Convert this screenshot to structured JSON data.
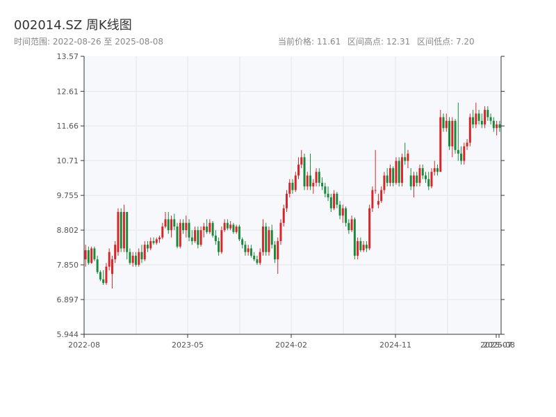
{
  "header": {
    "title": "002014.SZ 周K线图",
    "range_text": "时间范围: 2022-08-26 至 2025-08-08",
    "current_price_text": "当前价格: 11.61",
    "high_text": "区间高点: 12.31",
    "low_text": "区间低点: 7.20"
  },
  "chart_data": {
    "type": "candlestick",
    "title": "002014.SZ 周K线图",
    "xlabel": "",
    "ylabel": "",
    "date_range": [
      "2022-08-26",
      "2025-08-08"
    ],
    "current_price": 11.61,
    "period_high": 12.31,
    "period_low": 7.2,
    "ylim": [
      5.944,
      13.57
    ],
    "y_ticks": [
      "5.944",
      "6.897",
      "7.850",
      "8.802",
      "9.755",
      "10.71",
      "11.66",
      "12.61",
      "13.57"
    ],
    "x_ticks": [
      "2022-08",
      "2023-05",
      "2024-02",
      "2024-11",
      "2025-07",
      "2025-08"
    ],
    "up_color": "#d62728",
    "down_color": "#1a8a3a",
    "grid": true,
    "legend": "none",
    "series": [
      {
        "o": 8.0,
        "h": 8.4,
        "l": 7.8,
        "c": 8.25
      },
      {
        "o": 8.25,
        "h": 8.35,
        "l": 7.85,
        "c": 7.9
      },
      {
        "o": 7.9,
        "h": 8.35,
        "l": 7.88,
        "c": 8.3
      },
      {
        "o": 8.3,
        "h": 8.35,
        "l": 7.95,
        "c": 8.0
      },
      {
        "o": 8.0,
        "h": 8.1,
        "l": 7.6,
        "c": 7.65
      },
      {
        "o": 7.65,
        "h": 7.7,
        "l": 7.4,
        "c": 7.45
      },
      {
        "o": 7.45,
        "h": 7.7,
        "l": 7.3,
        "c": 7.35
      },
      {
        "o": 7.35,
        "h": 7.9,
        "l": 7.3,
        "c": 7.8
      },
      {
        "o": 7.8,
        "h": 8.3,
        "l": 7.7,
        "c": 8.2
      },
      {
        "o": 7.6,
        "h": 8.1,
        "l": 7.2,
        "c": 8.0
      },
      {
        "o": 8.0,
        "h": 8.5,
        "l": 7.9,
        "c": 8.4
      },
      {
        "o": 8.2,
        "h": 9.4,
        "l": 8.1,
        "c": 9.3
      },
      {
        "o": 9.3,
        "h": 9.4,
        "l": 8.2,
        "c": 8.3
      },
      {
        "o": 8.3,
        "h": 9.5,
        "l": 8.2,
        "c": 9.3
      },
      {
        "o": 9.3,
        "h": 9.3,
        "l": 8.0,
        "c": 8.2
      },
      {
        "o": 8.2,
        "h": 8.3,
        "l": 7.85,
        "c": 7.9
      },
      {
        "o": 7.9,
        "h": 8.2,
        "l": 7.8,
        "c": 8.1
      },
      {
        "o": 8.1,
        "h": 8.2,
        "l": 7.8,
        "c": 7.85
      },
      {
        "o": 7.85,
        "h": 8.3,
        "l": 7.8,
        "c": 8.2
      },
      {
        "o": 8.2,
        "h": 8.4,
        "l": 7.9,
        "c": 8.0
      },
      {
        "o": 8.0,
        "h": 8.5,
        "l": 7.95,
        "c": 8.4
      },
      {
        "o": 8.4,
        "h": 8.5,
        "l": 8.2,
        "c": 8.3
      },
      {
        "o": 8.3,
        "h": 8.6,
        "l": 8.25,
        "c": 8.5
      },
      {
        "o": 8.5,
        "h": 8.6,
        "l": 8.4,
        "c": 8.45
      },
      {
        "o": 8.45,
        "h": 8.6,
        "l": 8.4,
        "c": 8.55
      },
      {
        "o": 8.55,
        "h": 8.65,
        "l": 8.45,
        "c": 8.6
      },
      {
        "o": 8.6,
        "h": 9.0,
        "l": 8.55,
        "c": 8.9
      },
      {
        "o": 8.9,
        "h": 9.3,
        "l": 8.85,
        "c": 9.1
      },
      {
        "o": 9.1,
        "h": 9.3,
        "l": 8.7,
        "c": 8.8
      },
      {
        "o": 8.8,
        "h": 9.2,
        "l": 8.6,
        "c": 9.1
      },
      {
        "o": 9.1,
        "h": 9.25,
        "l": 8.8,
        "c": 8.9
      },
      {
        "o": 8.9,
        "h": 9.0,
        "l": 8.3,
        "c": 8.35
      },
      {
        "o": 8.35,
        "h": 9.1,
        "l": 8.3,
        "c": 9.0
      },
      {
        "o": 9.0,
        "h": 9.1,
        "l": 8.7,
        "c": 8.8
      },
      {
        "o": 8.8,
        "h": 9.2,
        "l": 8.6,
        "c": 9.0
      },
      {
        "o": 9.0,
        "h": 9.1,
        "l": 8.5,
        "c": 8.6
      },
      {
        "o": 8.6,
        "h": 8.8,
        "l": 8.4,
        "c": 8.5
      },
      {
        "o": 8.5,
        "h": 8.9,
        "l": 8.45,
        "c": 8.8
      },
      {
        "o": 8.8,
        "h": 8.9,
        "l": 8.3,
        "c": 8.4
      },
      {
        "o": 8.4,
        "h": 8.9,
        "l": 8.35,
        "c": 8.8
      },
      {
        "o": 8.8,
        "h": 9.0,
        "l": 8.6,
        "c": 8.9
      },
      {
        "o": 8.9,
        "h": 9.1,
        "l": 8.7,
        "c": 8.75
      },
      {
        "o": 8.75,
        "h": 9.1,
        "l": 8.7,
        "c": 9.0
      },
      {
        "o": 9.0,
        "h": 9.05,
        "l": 8.6,
        "c": 8.65
      },
      {
        "o": 8.65,
        "h": 8.8,
        "l": 8.4,
        "c": 8.5
      },
      {
        "o": 8.5,
        "h": 8.6,
        "l": 8.1,
        "c": 8.2
      },
      {
        "o": 8.2,
        "h": 8.9,
        "l": 8.15,
        "c": 8.8
      },
      {
        "o": 8.8,
        "h": 9.1,
        "l": 8.75,
        "c": 9.0
      },
      {
        "o": 9.0,
        "h": 9.1,
        "l": 8.8,
        "c": 8.85
      },
      {
        "o": 8.85,
        "h": 9.05,
        "l": 8.8,
        "c": 8.95
      },
      {
        "o": 8.95,
        "h": 9.0,
        "l": 8.7,
        "c": 8.75
      },
      {
        "o": 8.75,
        "h": 8.95,
        "l": 8.7,
        "c": 8.9
      },
      {
        "o": 8.9,
        "h": 8.95,
        "l": 8.5,
        "c": 8.55
      },
      {
        "o": 8.55,
        "h": 8.6,
        "l": 8.3,
        "c": 8.4
      },
      {
        "o": 8.4,
        "h": 8.5,
        "l": 8.1,
        "c": 8.2
      },
      {
        "o": 8.2,
        "h": 8.4,
        "l": 8.1,
        "c": 8.3
      },
      {
        "o": 8.3,
        "h": 8.4,
        "l": 8.05,
        "c": 8.1
      },
      {
        "o": 8.1,
        "h": 8.2,
        "l": 7.95,
        "c": 8.0
      },
      {
        "o": 8.0,
        "h": 8.1,
        "l": 7.85,
        "c": 7.9
      },
      {
        "o": 7.9,
        "h": 8.3,
        "l": 7.85,
        "c": 8.2
      },
      {
        "o": 8.2,
        "h": 9.1,
        "l": 8.1,
        "c": 8.9
      },
      {
        "o": 8.9,
        "h": 9.0,
        "l": 8.1,
        "c": 8.2
      },
      {
        "o": 8.2,
        "h": 8.9,
        "l": 8.1,
        "c": 8.8
      },
      {
        "o": 8.8,
        "h": 8.95,
        "l": 8.3,
        "c": 8.4
      },
      {
        "o": 8.4,
        "h": 8.5,
        "l": 7.9,
        "c": 8.0
      },
      {
        "o": 8.0,
        "h": 8.6,
        "l": 7.6,
        "c": 8.5
      },
      {
        "o": 8.5,
        "h": 9.1,
        "l": 8.4,
        "c": 9.0
      },
      {
        "o": 9.0,
        "h": 9.5,
        "l": 8.9,
        "c": 9.4
      },
      {
        "o": 9.4,
        "h": 9.9,
        "l": 9.3,
        "c": 9.8
      },
      {
        "o": 9.8,
        "h": 10.2,
        "l": 9.7,
        "c": 10.1
      },
      {
        "o": 10.1,
        "h": 10.2,
        "l": 9.8,
        "c": 9.9
      },
      {
        "o": 9.9,
        "h": 10.4,
        "l": 9.85,
        "c": 10.3
      },
      {
        "o": 10.3,
        "h": 10.8,
        "l": 10.2,
        "c": 10.6
      },
      {
        "o": 10.6,
        "h": 11.0,
        "l": 10.5,
        "c": 10.8
      },
      {
        "o": 10.8,
        "h": 10.9,
        "l": 9.9,
        "c": 10.0
      },
      {
        "o": 10.0,
        "h": 10.4,
        "l": 9.9,
        "c": 10.3
      },
      {
        "o": 10.3,
        "h": 10.9,
        "l": 9.9,
        "c": 10.0
      },
      {
        "o": 10.0,
        "h": 10.2,
        "l": 9.8,
        "c": 10.1
      },
      {
        "o": 10.1,
        "h": 10.5,
        "l": 10.0,
        "c": 10.4
      },
      {
        "o": 10.4,
        "h": 10.5,
        "l": 10.0,
        "c": 10.1
      },
      {
        "o": 10.1,
        "h": 10.25,
        "l": 9.9,
        "c": 10.0
      },
      {
        "o": 10.0,
        "h": 10.1,
        "l": 9.7,
        "c": 9.8
      },
      {
        "o": 9.8,
        "h": 10.0,
        "l": 9.6,
        "c": 9.7
      },
      {
        "o": 9.7,
        "h": 9.8,
        "l": 9.3,
        "c": 9.4
      },
      {
        "o": 9.4,
        "h": 9.9,
        "l": 9.35,
        "c": 9.8
      },
      {
        "o": 9.8,
        "h": 9.85,
        "l": 9.4,
        "c": 9.5
      },
      {
        "o": 9.5,
        "h": 9.6,
        "l": 9.1,
        "c": 9.2
      },
      {
        "o": 9.2,
        "h": 9.5,
        "l": 9.0,
        "c": 9.4
      },
      {
        "o": 9.4,
        "h": 9.45,
        "l": 8.9,
        "c": 9.0
      },
      {
        "o": 9.0,
        "h": 9.1,
        "l": 8.7,
        "c": 8.8
      },
      {
        "o": 8.8,
        "h": 9.2,
        "l": 8.75,
        "c": 9.1
      },
      {
        "o": 9.1,
        "h": 9.15,
        "l": 8.0,
        "c": 8.1
      },
      {
        "o": 8.1,
        "h": 8.6,
        "l": 8.0,
        "c": 8.5
      },
      {
        "o": 8.5,
        "h": 8.6,
        "l": 8.2,
        "c": 8.25
      },
      {
        "o": 8.25,
        "h": 8.5,
        "l": 8.2,
        "c": 8.4
      },
      {
        "o": 8.4,
        "h": 8.5,
        "l": 8.2,
        "c": 8.3
      },
      {
        "o": 8.3,
        "h": 9.5,
        "l": 8.25,
        "c": 9.4
      },
      {
        "o": 9.4,
        "h": 10.0,
        "l": 9.3,
        "c": 9.9
      },
      {
        "o": 9.9,
        "h": 11.0,
        "l": 9.8,
        "c": 9.9
      },
      {
        "o": 9.5,
        "h": 9.8,
        "l": 9.4,
        "c": 9.6
      },
      {
        "o": 9.6,
        "h": 10.0,
        "l": 9.55,
        "c": 9.9
      },
      {
        "o": 9.9,
        "h": 10.4,
        "l": 9.8,
        "c": 10.3
      },
      {
        "o": 10.3,
        "h": 10.5,
        "l": 10.0,
        "c": 10.1
      },
      {
        "o": 10.1,
        "h": 10.6,
        "l": 10.0,
        "c": 10.5
      },
      {
        "o": 10.5,
        "h": 10.55,
        "l": 10.0,
        "c": 10.1
      },
      {
        "o": 10.1,
        "h": 10.8,
        "l": 10.05,
        "c": 10.7
      },
      {
        "o": 10.7,
        "h": 10.8,
        "l": 10.0,
        "c": 10.1
      },
      {
        "o": 10.1,
        "h": 10.9,
        "l": 10.0,
        "c": 10.8
      },
      {
        "o": 10.8,
        "h": 11.2,
        "l": 10.6,
        "c": 10.7
      },
      {
        "o": 10.7,
        "h": 11.0,
        "l": 10.5,
        "c": 10.9
      },
      {
        "o": 10.3,
        "h": 10.5,
        "l": 9.9,
        "c": 10.0
      },
      {
        "o": 10.0,
        "h": 10.4,
        "l": 9.7,
        "c": 10.3
      },
      {
        "o": 10.3,
        "h": 10.4,
        "l": 10.0,
        "c": 10.1
      },
      {
        "o": 10.1,
        "h": 10.6,
        "l": 10.0,
        "c": 10.5
      },
      {
        "o": 10.5,
        "h": 10.6,
        "l": 10.2,
        "c": 10.3
      },
      {
        "o": 10.3,
        "h": 10.4,
        "l": 10.1,
        "c": 10.2
      },
      {
        "o": 10.2,
        "h": 10.4,
        "l": 9.9,
        "c": 10.0
      },
      {
        "o": 10.0,
        "h": 10.5,
        "l": 9.95,
        "c": 10.4
      },
      {
        "o": 10.4,
        "h": 10.7,
        "l": 10.3,
        "c": 10.5
      },
      {
        "o": 10.5,
        "h": 10.6,
        "l": 10.3,
        "c": 10.4
      },
      {
        "o": 10.4,
        "h": 12.1,
        "l": 10.4,
        "c": 11.9
      },
      {
        "o": 11.9,
        "h": 12.0,
        "l": 11.5,
        "c": 11.6
      },
      {
        "o": 11.6,
        "h": 12.0,
        "l": 11.5,
        "c": 11.8
      },
      {
        "o": 11.8,
        "h": 11.9,
        "l": 11.0,
        "c": 11.1
      },
      {
        "o": 11.1,
        "h": 11.9,
        "l": 10.8,
        "c": 11.8
      },
      {
        "o": 11.8,
        "h": 11.85,
        "l": 10.9,
        "c": 11.0
      },
      {
        "o": 11.0,
        "h": 12.3,
        "l": 10.7,
        "c": 10.9
      },
      {
        "o": 10.9,
        "h": 11.1,
        "l": 10.6,
        "c": 10.7
      },
      {
        "o": 10.7,
        "h": 11.2,
        "l": 10.6,
        "c": 11.1
      },
      {
        "o": 11.1,
        "h": 11.3,
        "l": 11.0,
        "c": 11.2
      },
      {
        "o": 11.2,
        "h": 12.0,
        "l": 11.1,
        "c": 11.9
      },
      {
        "o": 11.9,
        "h": 12.1,
        "l": 11.6,
        "c": 11.7
      },
      {
        "o": 11.7,
        "h": 12.3,
        "l": 11.6,
        "c": 12.0
      },
      {
        "o": 12.0,
        "h": 12.1,
        "l": 11.7,
        "c": 11.8
      },
      {
        "o": 11.8,
        "h": 12.0,
        "l": 11.6,
        "c": 11.7
      },
      {
        "o": 11.7,
        "h": 12.2,
        "l": 11.6,
        "c": 12.1
      },
      {
        "o": 12.1,
        "h": 12.2,
        "l": 11.8,
        "c": 11.9
      },
      {
        "o": 11.9,
        "h": 12.0,
        "l": 11.7,
        "c": 11.8
      },
      {
        "o": 11.8,
        "h": 11.9,
        "l": 11.5,
        "c": 11.6
      },
      {
        "o": 11.6,
        "h": 11.8,
        "l": 11.4,
        "c": 11.7
      },
      {
        "o": 11.7,
        "h": 11.8,
        "l": 11.5,
        "c": 11.61
      }
    ]
  }
}
